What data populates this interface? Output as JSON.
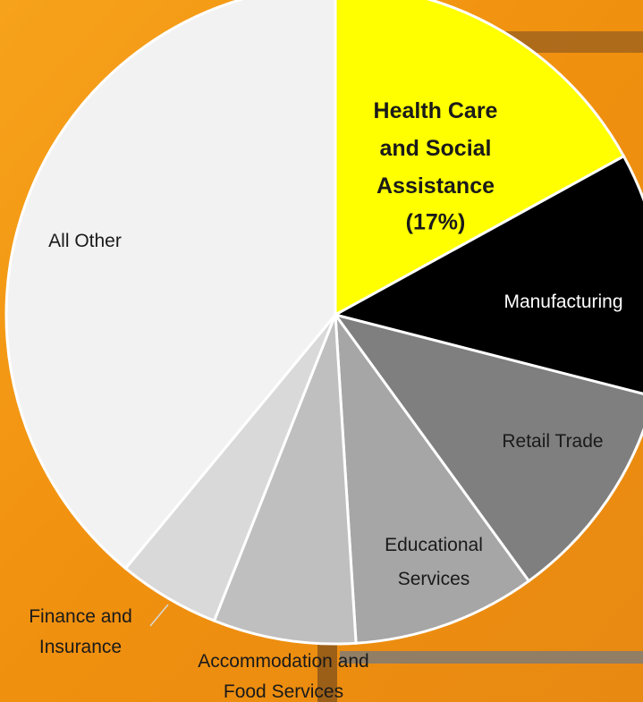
{
  "chart_data": {
    "type": "pie",
    "categories": [
      "Health Care and Social Assistance",
      "Manufacturing",
      "Retail Trade",
      "Educational Services",
      "Accommodation and Food Services",
      "Finance and Insurance",
      "All Other"
    ],
    "values": [
      17,
      12,
      11,
      9,
      7,
      5,
      39
    ],
    "value_labels": [
      "(17%)",
      null,
      null,
      null,
      null,
      null,
      null
    ],
    "colors": [
      "#ffff00",
      "#000000",
      "#7f7f7f",
      "#a6a6a6",
      "#bfbfbf",
      "#d9d9d9",
      "#f2f2f2"
    ]
  }
}
